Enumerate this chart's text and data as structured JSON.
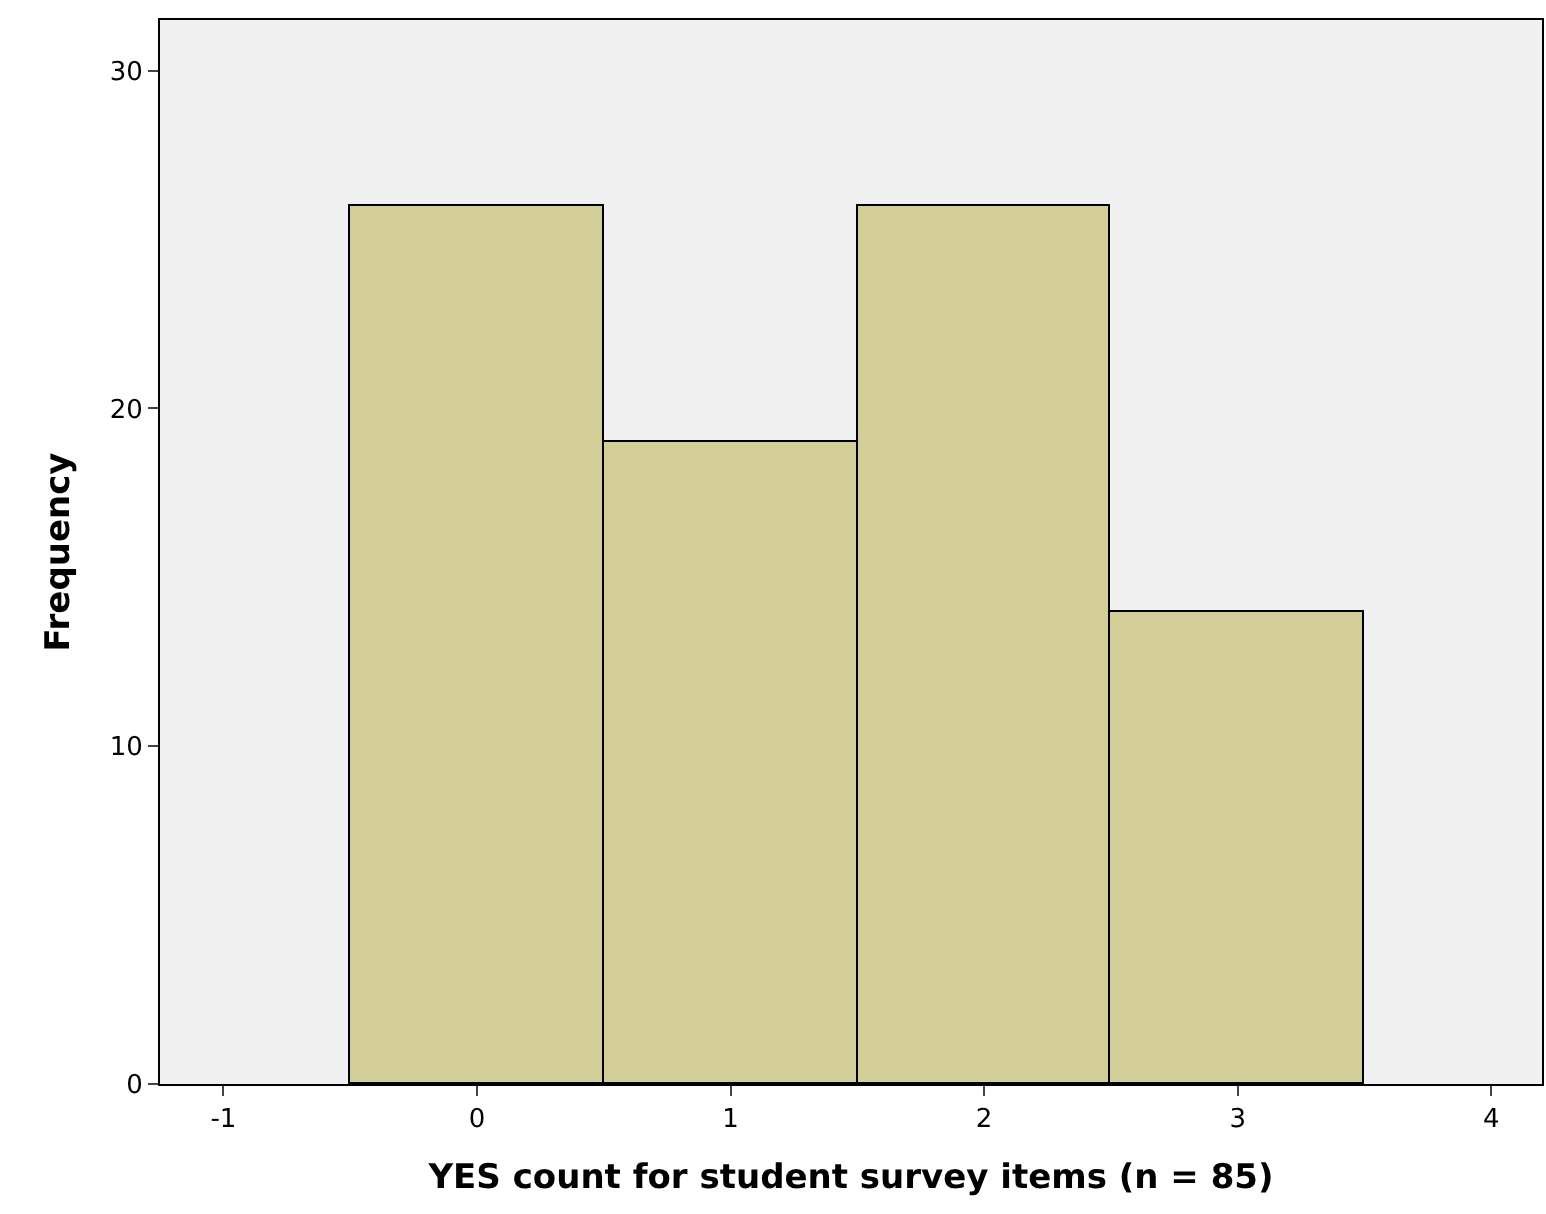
{
  "chart_data": {
    "type": "histogram",
    "xlabel": "YES count for student survey items (n = 85)",
    "ylabel": "Frequency",
    "bins": [
      -0.5,
      0.5,
      1.5,
      2.5,
      3.5
    ],
    "values": [
      26,
      19,
      26,
      14
    ],
    "color": "#d3ce97",
    "xlim": [
      -1.25,
      4.2
    ],
    "xticks": [
      -1,
      0,
      1,
      2,
      3,
      4
    ],
    "ylim": [
      0,
      31.5
    ],
    "yticks": [
      0,
      10,
      20,
      30
    ],
    "grid": false
  }
}
